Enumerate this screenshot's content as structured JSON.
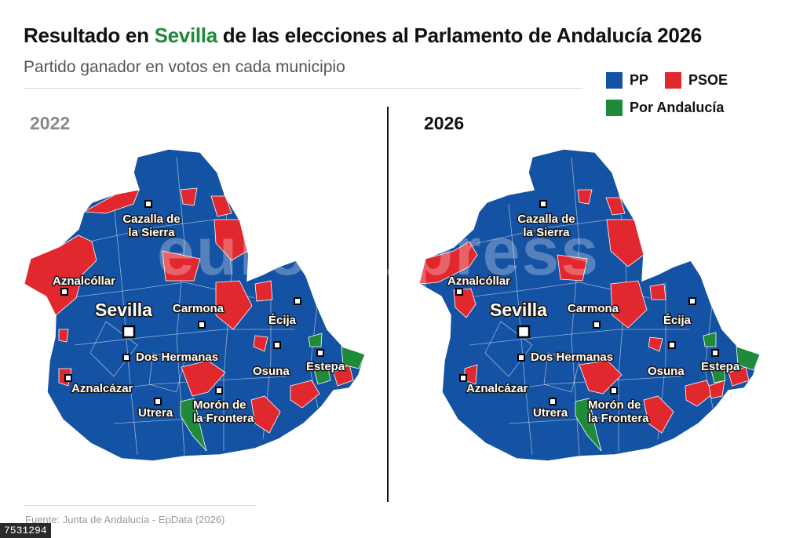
{
  "header": {
    "title_before": "Resultado en ",
    "title_highlight": "Sevilla",
    "title_after": " de las elecciones al Parlamento de Andalucía 2026",
    "subtitle": "Partido ganador en votos en cada municipio"
  },
  "legend": [
    {
      "label": "PP",
      "color": "#1452a3"
    },
    {
      "label": "PSOE",
      "color": "#e0282e"
    },
    {
      "label": "Por Andalucía",
      "color": "#1e8a3a"
    }
  ],
  "maps": {
    "left_year": "2022",
    "right_year": "2026"
  },
  "cities": {
    "cazalla_line1": "Cazalla de",
    "cazalla_line2": "la Sierra",
    "aznalcollar": "Aznalcóllar",
    "sevilla": "Sevilla",
    "carmona": "Carmona",
    "ecija": "Écija",
    "dos_hermanas": "Dos Hermanas",
    "osuna": "Osuna",
    "estepa": "Estepa",
    "aznalcazar": "Aznalcázar",
    "utrera": "Utrera",
    "moron_line1": "Morón de",
    "moron_line2": "la Frontera"
  },
  "watermark": "europa press",
  "footer": {
    "source": "Fuente: Junta de Andalucía - EpData (2026)",
    "image_id": "7531294"
  }
}
